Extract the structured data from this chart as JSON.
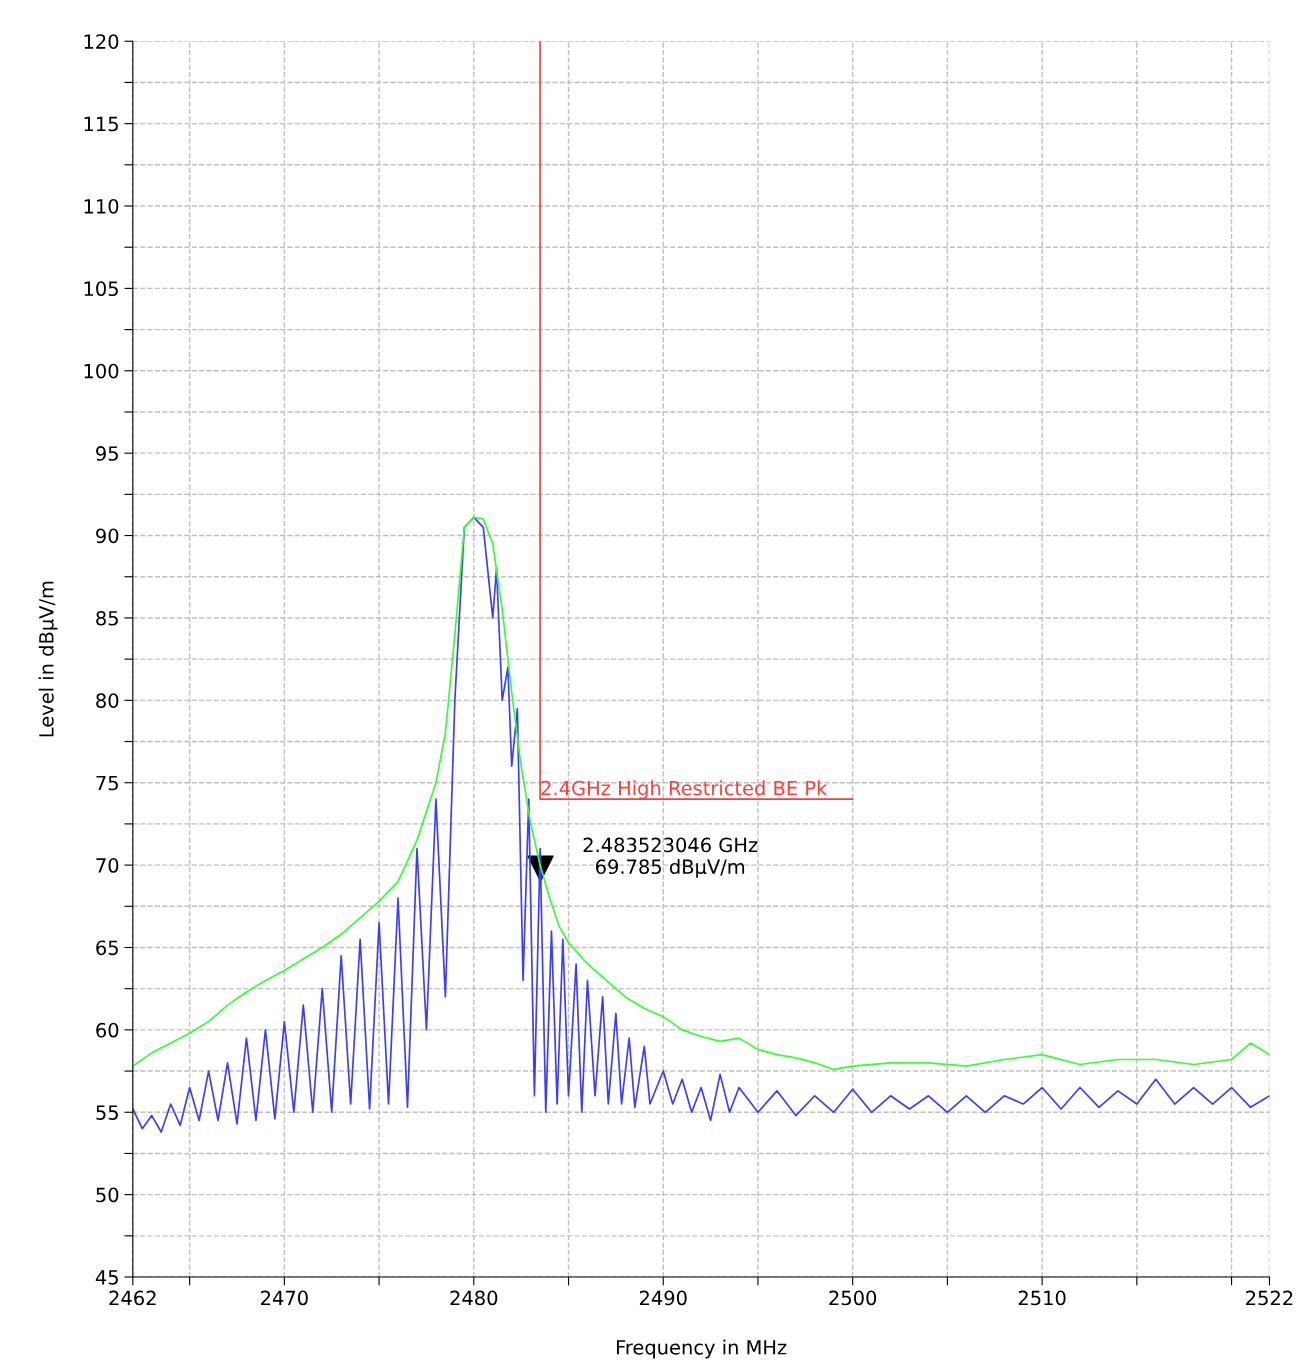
{
  "chart_data": {
    "type": "line",
    "xlabel": "Frequency in MHz",
    "ylabel": "Level in dBµV/m",
    "xlim": [
      2462,
      2522
    ],
    "ylim": [
      45,
      120
    ],
    "xticks": [
      2462,
      {
        "value": 2465,
        "label": null
      },
      2470,
      {
        "value": 2475,
        "label": null
      },
      2480,
      {
        "value": 2485,
        "label": null
      },
      2490,
      {
        "value": 2495,
        "label": null
      },
      2500,
      {
        "value": 2505,
        "label": null
      },
      2510,
      {
        "value": 2515,
        "label": null
      },
      {
        "value": 2520,
        "label": null
      },
      2522
    ],
    "yticks": [
      45,
      {
        "value": 47.5,
        "label": null
      },
      50,
      {
        "value": 52.5,
        "label": null
      },
      55,
      {
        "value": 57.5,
        "label": null
      },
      60,
      {
        "value": 62.5,
        "label": null
      },
      65,
      {
        "value": 67.5,
        "label": null
      },
      70,
      {
        "value": 72.5,
        "label": null
      },
      75,
      {
        "value": 77.5,
        "label": null
      },
      80,
      {
        "value": 82.5,
        "label": null
      },
      85,
      {
        "value": 87.5,
        "label": null
      },
      90,
      {
        "value": 92.5,
        "label": null
      },
      95,
      {
        "value": 97.5,
        "label": null
      },
      100,
      {
        "value": 102.5,
        "label": null
      },
      105,
      {
        "value": 107.5,
        "label": null
      },
      110,
      {
        "value": 112.5,
        "label": null
      },
      115,
      {
        "value": 117.5,
        "label": null
      },
      120
    ],
    "grid": true,
    "legend": false,
    "series": [
      {
        "color": "#3c3cff",
        "x": [
          2462,
          2462.5,
          2463,
          2463.5,
          2464,
          2464.5,
          2465,
          2465.5,
          2466,
          2466.5,
          2467,
          2467.5,
          2468,
          2468.5,
          2469,
          2469.5,
          2470,
          2470.5,
          2471,
          2471.5,
          2472,
          2472.5,
          2473,
          2473.5,
          2474,
          2474.5,
          2475,
          2475.5,
          2476,
          2476.5,
          2477,
          2477.5,
          2478,
          2478.5,
          2479,
          2479.5,
          2480,
          2480.5,
          2481,
          2481.2,
          2481.5,
          2481.8,
          2482,
          2482.3,
          2482.6,
          2482.9,
          2483.2,
          2483.5,
          2483.8,
          2484.1,
          2484.4,
          2484.7,
          2485,
          2485.4,
          2485.7,
          2486,
          2486.4,
          2486.8,
          2487.1,
          2487.5,
          2487.8,
          2488.2,
          2488.5,
          2489,
          2489.3,
          2490,
          2490.5,
          2491,
          2491.5,
          2492,
          2492.5,
          2493,
          2493.5,
          2494,
          2495,
          2496,
          2497,
          2498,
          2499,
          2500,
          2501,
          2502,
          2503,
          2504,
          2505,
          2506,
          2507,
          2508,
          2509,
          2510,
          2511,
          2512,
          2513,
          2514,
          2515,
          2516,
          2517,
          2518,
          2519,
          2520,
          2521,
          2522
        ],
        "values": [
          55.2,
          54.0,
          54.8,
          53.8,
          55.5,
          54.2,
          56.5,
          54.5,
          57.5,
          54.5,
          58,
          54.3,
          59.5,
          54.5,
          60,
          54.6,
          60.5,
          55,
          61.5,
          55,
          62.5,
          55,
          64.5,
          55.5,
          65.5,
          55.2,
          66.5,
          55.5,
          68,
          55.3,
          71,
          60,
          74,
          62,
          80,
          90.5,
          91.1,
          90.5,
          85,
          88,
          80,
          82,
          76,
          79.5,
          63,
          74,
          56,
          71,
          55,
          66,
          55.5,
          65.5,
          56,
          64,
          55,
          63,
          56,
          62,
          55.5,
          61,
          55.5,
          59.5,
          55.3,
          59,
          55.5,
          57.5,
          55.5,
          57,
          55,
          56.5,
          54.5,
          57.3,
          55,
          56.5,
          55,
          56.3,
          54.8,
          56,
          55,
          56.4,
          55,
          56,
          55.2,
          56,
          55,
          56,
          55,
          56,
          55.5,
          56.5,
          55.2,
          56.5,
          55.3,
          56.3,
          55.5,
          57,
          55.5,
          56.5,
          55.5,
          56.5,
          55.3,
          56.0
        ]
      },
      {
        "color": "#33ff33",
        "x": [
          2462,
          2463,
          2464,
          2465,
          2466,
          2467,
          2468,
          2469,
          2470,
          2471,
          2472,
          2473,
          2474,
          2475,
          2476,
          2477,
          2478,
          2478.5,
          2479,
          2479.5,
          2480,
          2480.5,
          2481,
          2481.5,
          2482,
          2482.5,
          2483,
          2483.5,
          2484,
          2484.5,
          2485,
          2486,
          2487,
          2488,
          2489,
          2490,
          2491,
          2492,
          2493,
          2494,
          2495,
          2496,
          2497,
          2498,
          2499,
          2500,
          2502,
          2504,
          2506,
          2508,
          2510,
          2512,
          2514,
          2516,
          2518,
          2520,
          2521,
          2522
        ],
        "values": [
          57.8,
          58.6,
          59.2,
          59.8,
          60.5,
          61.5,
          62.3,
          63.0,
          63.6,
          64.3,
          65.0,
          65.8,
          66.8,
          67.8,
          69.0,
          71.5,
          75,
          78,
          84,
          90.5,
          91.1,
          91.0,
          89.5,
          85.5,
          80.5,
          76,
          72.5,
          70,
          68,
          66.3,
          65.3,
          64,
          63,
          62,
          61.3,
          60.8,
          60,
          59.6,
          59.3,
          59.5,
          58.8,
          58.5,
          58.3,
          58,
          57.6,
          57.8,
          58,
          58,
          57.8,
          58.2,
          58.5,
          57.9,
          58.2,
          58.2,
          57.9,
          58.2,
          59.2,
          58.5
        ]
      },
      {
        "name": "2.4GHz High Restricted BE Pk",
        "color": "#ff3c3c",
        "x": [
          2483.5,
          2483.5,
          2500
        ],
        "values": [
          120,
          74,
          74
        ]
      },
      {
        "type": "scatter",
        "color": "#000000",
        "marker": "triangle",
        "x": [
          2483.523046
        ],
        "values": [
          69.785
        ]
      }
    ],
    "annotations": [
      {
        "text": "2.483523046 GHz\n69.785 dBµV/m",
        "x": 2483.523046,
        "y": 69.785
      }
    ]
  }
}
